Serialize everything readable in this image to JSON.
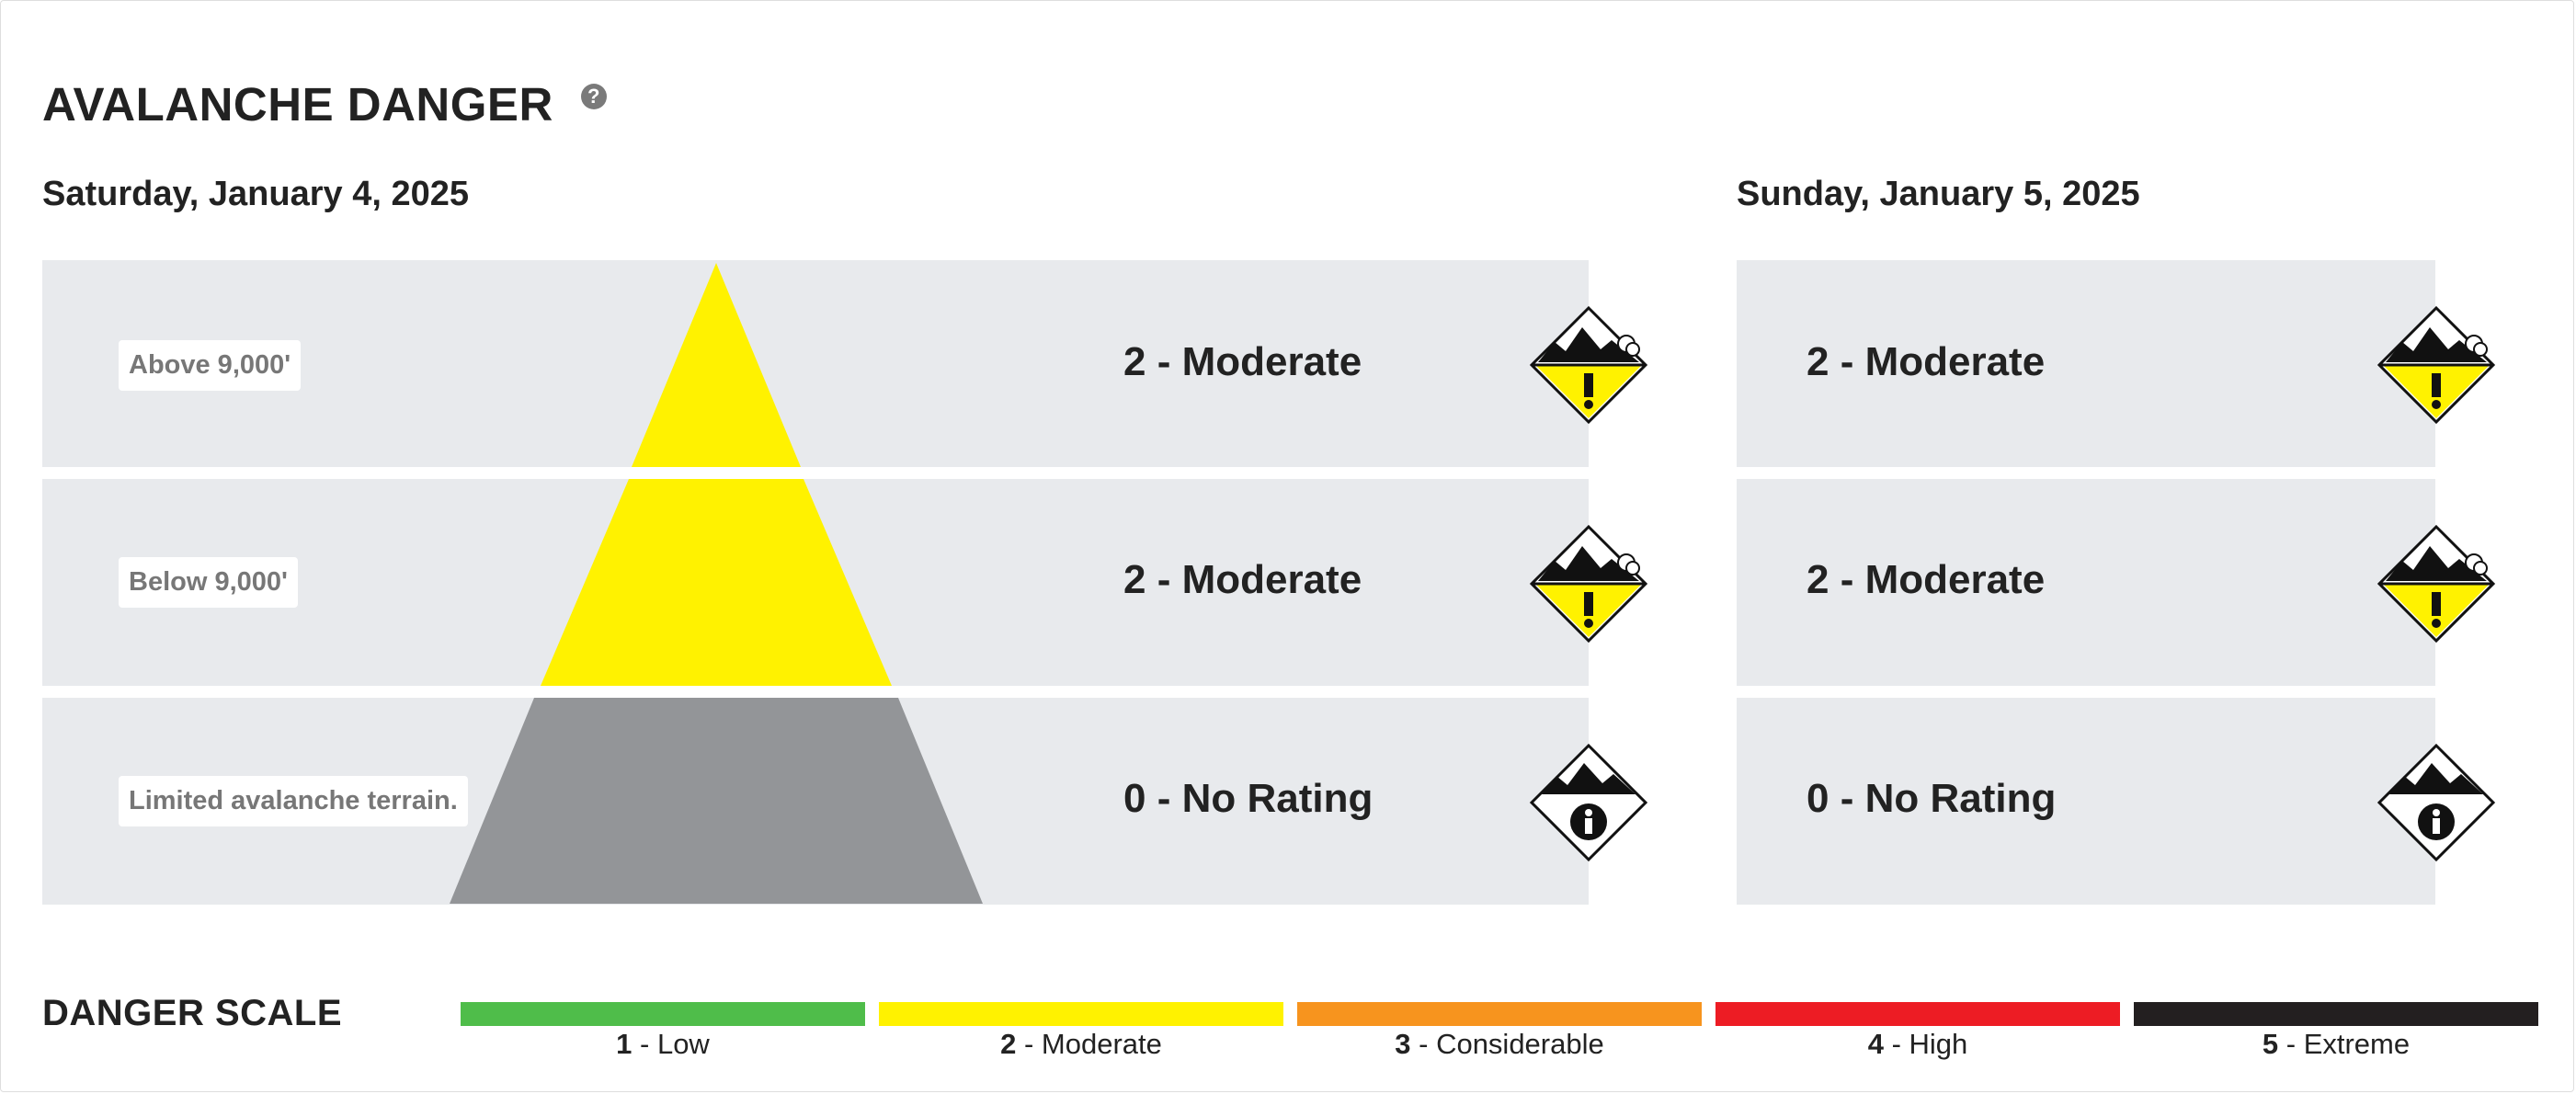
{
  "header": {
    "title": "AVALANCHE DANGER",
    "help_icon": "?"
  },
  "days": [
    {
      "date": "Saturday, January 4, 2025",
      "rows": [
        {
          "elevation": "Above 9,000'",
          "rating": "2 - Moderate",
          "icon": "danger-moderate-icon"
        },
        {
          "elevation": "Below 9,000'",
          "rating": "2 - Moderate",
          "icon": "danger-moderate-icon"
        },
        {
          "elevation": "Limited avalanche terrain.",
          "rating": "0 - No Rating",
          "icon": "no-rating-info-icon"
        }
      ]
    },
    {
      "date": "Sunday, January 5, 2025",
      "rows": [
        {
          "rating": "2 - Moderate",
          "icon": "danger-moderate-icon"
        },
        {
          "rating": "2 - Moderate",
          "icon": "danger-moderate-icon"
        },
        {
          "rating": "0 - No Rating",
          "icon": "no-rating-info-icon"
        }
      ]
    }
  ],
  "scale": {
    "title": "DANGER SCALE",
    "levels": [
      {
        "num": "1",
        "name": " - Low",
        "color": "#4fbd4a"
      },
      {
        "num": "2",
        "name": " - Moderate",
        "color": "#fff200"
      },
      {
        "num": "3",
        "name": " - Considerable",
        "color": "#f7941e"
      },
      {
        "num": "4",
        "name": " - High",
        "color": "#ed1c24"
      },
      {
        "num": "5",
        "name": " - Extreme",
        "color": "#231f20"
      }
    ]
  },
  "colors": {
    "moderate": "#fff200",
    "no_rating": "#939598",
    "row_bg": "#e8eaed"
  }
}
